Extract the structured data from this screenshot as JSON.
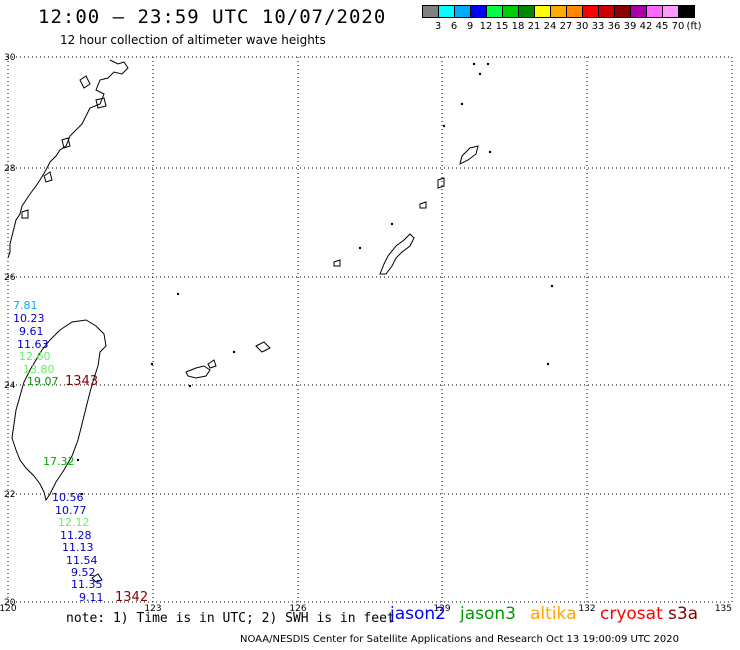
{
  "header": {
    "title": "12:00 – 23:59 UTC 10/07/2020",
    "subtitle": "12 hour collection of altimeter wave heights"
  },
  "scale": {
    "colors": [
      "#808080",
      "#00ffff",
      "#00aaff",
      "#0000ff",
      "#00ff44",
      "#00cc00",
      "#008800",
      "#ffff00",
      "#ffaa00",
      "#ff8800",
      "#ff0000",
      "#cc0000",
      "#880000",
      "#aa00aa",
      "#ff66ff",
      "#ff99ff",
      "#000000"
    ],
    "labels": [
      "3",
      "6",
      "9",
      "12",
      "15",
      "18",
      "21",
      "24",
      "27",
      "30",
      "33",
      "36",
      "39",
      "42",
      "45",
      "70",
      "(ft)"
    ]
  },
  "axes": {
    "lon_ticks": [
      "120",
      "123",
      "126",
      "129",
      "132",
      "135"
    ],
    "lat_ticks": [
      "30",
      "28",
      "26",
      "24",
      "22",
      "20"
    ]
  },
  "observations": [
    {
      "text": "7.81",
      "color": "#00aaff"
    },
    {
      "text": "10.23",
      "color": "#0000cc"
    },
    {
      "text": "9.61",
      "color": "#0000cc"
    },
    {
      "text": "11.63",
      "color": "#0000cc"
    },
    {
      "text": "12.60",
      "color": "#66ee66"
    },
    {
      "text": "13.80",
      "color": "#66ee66"
    },
    {
      "text": "19.07",
      "color": "#009900"
    },
    {
      "text": "1343",
      "color": "#880000"
    },
    {
      "text": "17.32",
      "color": "#00aa00"
    },
    {
      "text": "10.56",
      "color": "#0000cc"
    },
    {
      "text": "10.77",
      "color": "#0000cc"
    },
    {
      "text": "12.12",
      "color": "#66ee66"
    },
    {
      "text": "11.28",
      "color": "#0000cc"
    },
    {
      "text": "11.13",
      "color": "#0000cc"
    },
    {
      "text": "11.54",
      "color": "#0000cc"
    },
    {
      "text": "9.52",
      "color": "#0000cc"
    },
    {
      "text": "11.35",
      "color": "#0000cc"
    },
    {
      "text": "9.11",
      "color": "#0000cc"
    },
    {
      "text": "1342",
      "color": "#880000"
    }
  ],
  "footer": {
    "note": "note: 1) Time is in UTC; 2) SWH is in feet",
    "satellites": [
      {
        "name": "jason2",
        "color": "#0000ff"
      },
      {
        "name": "jason3",
        "color": "#009900"
      },
      {
        "name": "altika",
        "color": "#ffa500"
      },
      {
        "name": "cryosat",
        "color": "#ff0000"
      },
      {
        "name": "s3a",
        "color": "#880000"
      }
    ],
    "credit": "NOAA/NESDIS Center for Satellite Applications and Research    Oct 13 19:00:09 UTC 2020"
  }
}
